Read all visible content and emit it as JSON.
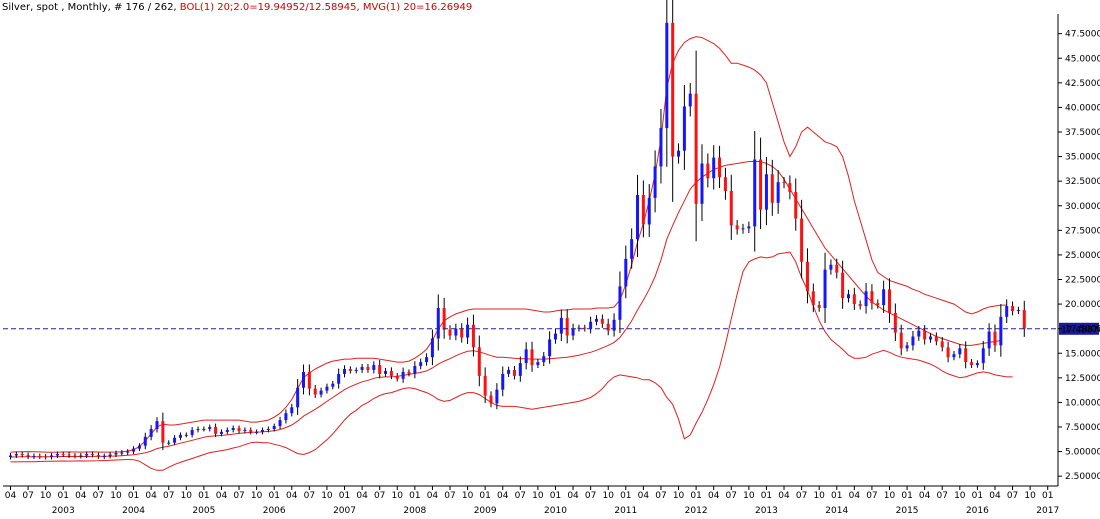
{
  "header": {
    "symbol_label": "Silver, spot , Monthly, # 176 / 262,",
    "bol_label": "BOL(1) 20;2.0=19.94952/12.58945,",
    "mvg_label": "MVG(1) 20=16.26949"
  },
  "colors": {
    "up": "#1515ff",
    "down": "#ff1010",
    "indicator": "#e02020",
    "price_line": "#2020a0",
    "price_tag_bg": "#1a1aa0",
    "grid": "#000000",
    "background": "#ffffff"
  },
  "chart_data": {
    "type": "candlestick",
    "title": "Silver, spot , Monthly",
    "ylim": [
      1.5,
      49.5
    ],
    "y_ticks": [
      "2.50000",
      "5.00000",
      "7.50000",
      "10.00000",
      "12.50000",
      "15.00000",
      "17.50000",
      "20.00000",
      "22.50000",
      "25.00000",
      "27.50000",
      "30.00000",
      "32.50000",
      "35.00000",
      "37.50000",
      "40.00000",
      "42.50000",
      "45.00000",
      "47.50000"
    ],
    "x_month_ticks": [
      "04",
      "07",
      "10",
      "01",
      "04",
      "07",
      "10",
      "01",
      "04",
      "07",
      "10",
      "01",
      "04",
      "07",
      "10",
      "01",
      "04",
      "07",
      "10",
      "01",
      "04",
      "07",
      "10",
      "01",
      "04",
      "07",
      "10",
      "01",
      "04",
      "07",
      "10",
      "01",
      "04",
      "07",
      "10",
      "01",
      "04",
      "07",
      "10",
      "01",
      "04",
      "07",
      "10",
      "01",
      "04",
      "07",
      "10",
      "01",
      "04",
      "07",
      "10",
      "01",
      "04",
      "07",
      "10",
      "01",
      "04",
      "07",
      "10",
      "01"
    ],
    "x_year_ticks": [
      "2003",
      "2004",
      "2005",
      "2006",
      "2007",
      "2008",
      "2009",
      "2010",
      "2011",
      "2012",
      "2013",
      "2014",
      "2015",
      "2016",
      "2017"
    ],
    "first_month": "2002-04",
    "last_price": 17.4887,
    "last_price_label": "17.48870",
    "close": [
      4.6,
      4.75,
      4.65,
      4.5,
      4.55,
      4.5,
      4.45,
      4.6,
      4.75,
      4.7,
      4.6,
      4.55,
      4.6,
      4.75,
      4.65,
      4.5,
      4.55,
      4.7,
      4.85,
      4.9,
      5.0,
      5.3,
      5.6,
      6.5,
      7.3,
      8.1,
      5.9,
      5.9,
      6.4,
      6.7,
      6.7,
      7.2,
      7.3,
      7.3,
      7.5,
      6.8,
      7.0,
      7.2,
      7.4,
      7.1,
      7.2,
      7.0,
      7.0,
      7.2,
      7.3,
      7.6,
      8.2,
      8.9,
      9.5,
      11.5,
      13.1,
      11.4,
      10.8,
      11.2,
      11.6,
      11.9,
      12.9,
      13.4,
      13.2,
      13.3,
      13.6,
      13.3,
      13.8,
      12.9,
      13.2,
      12.7,
      12.4,
      13.1,
      12.9,
      13.7,
      14.1,
      14.6,
      16.5,
      19.6,
      17.4,
      16.8,
      17.5,
      16.6,
      17.9,
      15.6,
      12.7,
      10.7,
      9.9,
      11.3,
      12.9,
      13.3,
      12.7,
      14.0,
      15.4,
      13.8,
      14.1,
      14.7,
      16.4,
      17.0,
      18.6,
      16.8,
      17.5,
      17.6,
      17.5,
      18.2,
      18.5,
      18.0,
      17.3,
      18.4,
      21.8,
      24.6,
      26.6,
      31.1,
      28.1,
      30.8,
      34.0,
      37.9,
      48.6,
      35.0,
      35.6,
      40.1,
      41.4,
      30.2,
      34.3,
      32.8,
      34.9,
      32.9,
      31.5,
      28.0,
      27.6,
      27.7,
      27.9,
      34.7,
      29.6,
      33.2,
      30.3,
      32.4,
      32.3,
      31.4,
      28.7,
      24.3,
      21.3,
      19.9,
      19.6,
      23.5,
      24.0,
      23.2,
      20.6,
      21.0,
      20.0,
      19.8,
      21.3,
      20.1,
      19.9,
      21.5,
      19.1,
      17.1,
      15.5,
      15.8,
      16.7,
      17.3,
      16.4,
      16.7,
      16.2,
      15.6,
      14.6,
      14.9,
      15.5,
      14.1,
      13.8,
      14.0,
      15.5,
      17.2,
      15.8,
      18.7,
      19.8,
      19.3,
      19.4,
      17.5
    ],
    "series": [
      {
        "name": "BOL(1) 20;2.0 upper",
        "values": [
          4.95,
          4.97,
          4.98,
          5.0,
          4.99,
          4.97,
          4.95,
          4.94,
          4.95,
          4.96,
          4.97,
          4.96,
          4.95,
          4.96,
          4.97,
          4.96,
          4.95,
          4.95,
          4.96,
          4.99,
          5.05,
          5.2,
          5.5,
          6.1,
          6.8,
          7.5,
          7.8,
          7.7,
          7.7,
          7.8,
          7.9,
          8.0,
          8.1,
          8.2,
          8.2,
          8.2,
          8.2,
          8.2,
          8.2,
          8.2,
          8.1,
          8.0,
          8.0,
          8.1,
          8.2,
          8.5,
          8.9,
          9.5,
          10.3,
          11.4,
          12.5,
          13.0,
          13.4,
          13.7,
          14.0,
          14.2,
          14.3,
          14.4,
          14.4,
          14.5,
          14.5,
          14.5,
          14.5,
          14.4,
          14.3,
          14.2,
          14.1,
          14.1,
          14.2,
          14.5,
          14.9,
          15.4,
          16.3,
          17.5,
          18.3,
          18.7,
          19.0,
          19.2,
          19.4,
          19.5,
          19.5,
          19.5,
          19.5,
          19.5,
          19.5,
          19.5,
          19.5,
          19.5,
          19.5,
          19.4,
          19.3,
          19.2,
          19.2,
          19.3,
          19.4,
          19.4,
          19.5,
          19.5,
          19.5,
          19.5,
          19.6,
          19.6,
          19.6,
          19.7,
          20.4,
          22.0,
          24.0,
          26.3,
          28.2,
          30.5,
          33.2,
          36.8,
          42.0,
          44.5,
          45.8,
          46.6,
          47.0,
          47.2,
          47.1,
          46.8,
          46.5,
          46.0,
          45.3,
          44.5,
          44.5,
          44.3,
          44.1,
          43.8,
          43.3,
          42.5,
          40.5,
          38.5,
          36.5,
          35.0,
          36.0,
          37.5,
          38.0,
          37.5,
          37.0,
          36.5,
          36.3,
          36.0,
          35.0,
          33.0,
          30.5,
          28.5,
          26.5,
          24.5,
          23.2,
          22.8,
          22.4,
          22.2,
          22.0,
          21.8,
          21.5,
          21.3,
          21.0,
          20.8,
          20.6,
          20.4,
          20.2,
          20.0,
          19.6,
          19.2,
          19.0,
          19.2,
          19.5,
          19.7,
          19.8,
          19.9,
          19.9
        ]
      },
      {
        "name": "MVG(1) 20",
        "values": [
          4.45,
          4.46,
          4.47,
          4.48,
          4.48,
          4.48,
          4.48,
          4.48,
          4.49,
          4.5,
          4.5,
          4.5,
          4.5,
          4.5,
          4.51,
          4.51,
          4.52,
          4.53,
          4.55,
          4.58,
          4.62,
          4.68,
          4.76,
          4.88,
          5.05,
          5.3,
          5.45,
          5.55,
          5.7,
          5.85,
          6.0,
          6.15,
          6.3,
          6.45,
          6.55,
          6.6,
          6.65,
          6.7,
          6.78,
          6.85,
          6.9,
          6.95,
          6.98,
          7.0,
          7.05,
          7.12,
          7.25,
          7.45,
          7.7,
          8.1,
          8.6,
          8.95,
          9.3,
          9.7,
          10.1,
          10.5,
          10.9,
          11.3,
          11.6,
          11.85,
          12.1,
          12.25,
          12.45,
          12.55,
          12.6,
          12.6,
          12.65,
          12.75,
          12.85,
          12.95,
          13.05,
          13.2,
          13.5,
          13.9,
          14.2,
          14.45,
          14.75,
          15.0,
          15.2,
          15.25,
          15.15,
          14.95,
          14.75,
          14.6,
          14.6,
          14.55,
          14.5,
          14.45,
          14.45,
          14.4,
          14.4,
          14.4,
          14.45,
          14.5,
          14.55,
          14.6,
          14.7,
          14.8,
          14.95,
          15.1,
          15.3,
          15.55,
          15.8,
          16.1,
          16.6,
          17.4,
          18.3,
          19.4,
          20.4,
          21.5,
          22.8,
          24.5,
          26.6,
          28.0,
          29.3,
          30.5,
          31.7,
          32.4,
          32.9,
          33.3,
          33.7,
          33.9,
          34.1,
          34.2,
          34.3,
          34.4,
          34.5,
          34.5,
          34.5,
          34.3,
          34.0,
          33.5,
          32.7,
          31.7,
          30.7,
          29.7,
          28.7,
          27.7,
          26.7,
          25.7,
          25.0,
          24.3,
          23.6,
          22.9,
          22.2,
          21.5,
          20.8,
          20.2,
          19.8,
          19.4,
          19.1,
          18.8,
          18.5,
          18.2,
          17.9,
          17.6,
          17.3,
          17.0,
          16.7,
          16.5,
          16.3,
          16.1,
          15.9,
          15.8,
          15.8,
          15.9,
          16.0,
          16.1,
          16.2,
          16.3
        ]
      },
      {
        "name": "BOL(1) 20;2.0 lower",
        "values": [
          3.95,
          3.95,
          3.96,
          3.96,
          3.97,
          3.99,
          4.01,
          4.02,
          4.03,
          4.04,
          4.03,
          4.04,
          4.05,
          4.04,
          4.05,
          4.06,
          4.09,
          4.11,
          4.14,
          4.17,
          4.19,
          4.16,
          4.02,
          3.66,
          3.3,
          3.1,
          3.1,
          3.4,
          3.7,
          3.9,
          4.1,
          4.3,
          4.5,
          4.7,
          4.9,
          5.0,
          5.1,
          5.2,
          5.36,
          5.5,
          5.7,
          5.9,
          5.96,
          5.9,
          5.9,
          5.74,
          5.6,
          5.4,
          5.1,
          4.8,
          4.7,
          4.9,
          5.2,
          5.7,
          6.2,
          6.8,
          7.5,
          8.2,
          8.8,
          9.2,
          9.7,
          10.0,
          10.4,
          10.7,
          10.9,
          11.0,
          11.2,
          11.4,
          11.5,
          11.4,
          11.2,
          11.0,
          10.7,
          10.3,
          10.1,
          10.2,
          10.5,
          10.8,
          11.0,
          11.0,
          10.8,
          10.4,
          10.0,
          9.7,
          9.6,
          9.6,
          9.6,
          9.5,
          9.4,
          9.3,
          9.4,
          9.5,
          9.6,
          9.7,
          9.8,
          9.9,
          10.0,
          10.1,
          10.3,
          10.5,
          10.9,
          11.4,
          12.1,
          12.6,
          12.8,
          12.7,
          12.6,
          12.5,
          12.3,
          12.3,
          12.0,
          11.5,
          10.5,
          9.8,
          8.3,
          6.3,
          6.7,
          7.9,
          9.0,
          10.3,
          11.8,
          13.6,
          15.9,
          18.5,
          21.0,
          23.3,
          24.3,
          24.6,
          24.8,
          24.7,
          24.8,
          25.1,
          25.2,
          25.3,
          24.3,
          22.7,
          21.4,
          19.8,
          18.3,
          17.2,
          16.4,
          15.9,
          15.4,
          14.8,
          14.5,
          14.5,
          14.6,
          14.9,
          15.1,
          15.3,
          15.1,
          14.8,
          14.6,
          14.5,
          14.4,
          14.3,
          14.1,
          13.9,
          13.6,
          13.2,
          12.9,
          12.7,
          12.5,
          12.6,
          12.8,
          13.0,
          13.1,
          13.0,
          12.8,
          12.7,
          12.6,
          12.6
        ]
      }
    ],
    "grid": false,
    "legend": "none"
  }
}
